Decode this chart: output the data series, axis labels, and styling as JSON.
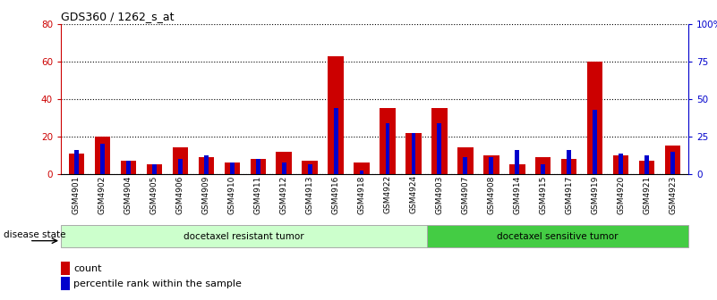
{
  "title": "GDS360 / 1262_s_at",
  "samples": [
    "GSM4901",
    "GSM4902",
    "GSM4904",
    "GSM4905",
    "GSM4906",
    "GSM4909",
    "GSM4910",
    "GSM4911",
    "GSM4912",
    "GSM4913",
    "GSM4916",
    "GSM4918",
    "GSM4922",
    "GSM4924",
    "GSM4903",
    "GSM4907",
    "GSM4908",
    "GSM4914",
    "GSM4915",
    "GSM4917",
    "GSM4919",
    "GSM4920",
    "GSM4921",
    "GSM4923"
  ],
  "count": [
    11,
    20,
    7,
    5,
    14,
    9,
    6,
    8,
    12,
    7,
    63,
    6,
    35,
    22,
    35,
    14,
    10,
    5,
    9,
    8,
    60,
    10,
    7,
    15
  ],
  "percentile": [
    13,
    16,
    7,
    5,
    8,
    10,
    6,
    8,
    6,
    5,
    35,
    2,
    27,
    22,
    27,
    9,
    9,
    13,
    5,
    13,
    34,
    11,
    10,
    12
  ],
  "group1_label": "docetaxel resistant tumor",
  "group2_label": "docetaxel sensitive tumor",
  "group1_count": 14,
  "group2_count": 10,
  "left_ylim": [
    0,
    80
  ],
  "right_ylim": [
    0,
    100
  ],
  "left_yticks": [
    0,
    20,
    40,
    60,
    80
  ],
  "right_yticks": [
    0,
    25,
    50,
    75,
    100
  ],
  "right_yticklabels": [
    "0",
    "25",
    "50",
    "75",
    "100%"
  ],
  "bar_color": "#cc0000",
  "percentile_color": "#0000cc",
  "group1_bg": "#ccffcc",
  "group2_bg": "#44cc44",
  "bar_width": 0.6,
  "disease_state_label": "disease state",
  "legend_count": "count",
  "legend_percentile": "percentile rank within the sample",
  "background_color": "#ffffff",
  "tick_color": "#cc0000",
  "right_tick_color": "#0000cc"
}
